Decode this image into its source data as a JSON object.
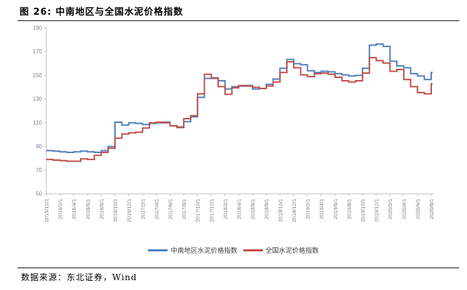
{
  "title": "图 26: 中南地区与全国水泥价格指数",
  "footer": {
    "label": "数据来源：东北证券，Wind"
  },
  "chart_data": {
    "type": "line",
    "step_interpolation": true,
    "title": "中南地区与全国水泥价格指数",
    "grid": false,
    "legend_position": "bottom",
    "ylim": [
      50,
      190
    ],
    "y_ticks": [
      50,
      70,
      90,
      110,
      130,
      150,
      170,
      190
    ],
    "x_ticks": [
      "2015/12/1",
      "2016/2/1",
      "2016/4/1",
      "2016/6/1",
      "2016/8/1",
      "2016/10/1",
      "2016/12/1",
      "2017/2/1",
      "2017/4/1",
      "2017/6/1",
      "2017/8/1",
      "2017/10/1",
      "2017/12/1",
      "2018/2/1",
      "2018/4/1",
      "2018/6/1",
      "2018/8/1",
      "2018/10/1",
      "2018/12/1",
      "2019/2/1",
      "2019/4/1",
      "2019/6/1",
      "2019/8/1",
      "2019/10/1",
      "2019/12/1",
      "2020/2/1",
      "2020/4/1",
      "2020/6/1",
      "2020/8/1"
    ],
    "x_months": [
      "2015/12",
      "2016/1",
      "2016/2",
      "2016/3",
      "2016/4",
      "2016/5",
      "2016/6",
      "2016/7",
      "2016/8",
      "2016/9",
      "2016/10",
      "2016/11",
      "2016/12",
      "2017/1",
      "2017/2",
      "2017/3",
      "2017/4",
      "2017/5",
      "2017/6",
      "2017/7",
      "2017/8",
      "2017/9",
      "2017/10",
      "2017/11",
      "2017/12",
      "2018/1",
      "2018/2",
      "2018/3",
      "2018/4",
      "2018/5",
      "2018/6",
      "2018/7",
      "2018/8",
      "2018/9",
      "2018/10",
      "2018/11",
      "2018/12",
      "2019/1",
      "2019/2",
      "2019/3",
      "2019/4",
      "2019/5",
      "2019/6",
      "2019/7",
      "2019/8",
      "2019/9",
      "2019/10",
      "2019/11",
      "2019/12",
      "2020/1",
      "2020/2",
      "2020/3",
      "2020/4",
      "2020/5",
      "2020/6",
      "2020/7",
      "2020/8"
    ],
    "series": [
      {
        "key": "central-south",
        "name": "中南地区水泥价格指数",
        "color": "#4F81BD",
        "values": [
          86.5,
          86,
          85.5,
          85,
          85.5,
          86,
          85.5,
          85,
          86.5,
          90,
          110.5,
          108,
          110,
          109.5,
          108.5,
          109.5,
          110,
          110.5,
          107.5,
          106.5,
          111,
          115,
          131.5,
          147.5,
          148,
          145.5,
          138.5,
          140.5,
          141,
          141.5,
          138.5,
          139,
          142.5,
          147,
          156,
          163.5,
          160,
          159,
          154,
          152.5,
          153.5,
          153,
          151.5,
          150.5,
          149.5,
          150,
          156,
          175.5,
          176.5,
          174.5,
          162,
          158,
          156.5,
          151.5,
          149.5,
          146.5,
          152.5
        ]
      },
      {
        "key": "national",
        "name": "全国水泥价格指数",
        "color": "#C0504D",
        "values": [
          79,
          78.5,
          78,
          77.5,
          77.5,
          79.5,
          79,
          82.5,
          85,
          88.5,
          97,
          100.5,
          101.5,
          102,
          105.5,
          110,
          110.5,
          110,
          107.5,
          106,
          113.5,
          116,
          134.5,
          151,
          147.5,
          140.5,
          134,
          139.5,
          141.5,
          141,
          140,
          139,
          141,
          144.5,
          152.5,
          161.5,
          156.5,
          150.5,
          149,
          151.5,
          152,
          151,
          148.5,
          145.5,
          144.5,
          145.5,
          152,
          165,
          162.5,
          160.5,
          153.5,
          155,
          146.5,
          140.5,
          135.5,
          134.5,
          143
        ]
      }
    ],
    "axis_color": "#BFBFBF",
    "tick_label_color": "#7F7F7F"
  }
}
